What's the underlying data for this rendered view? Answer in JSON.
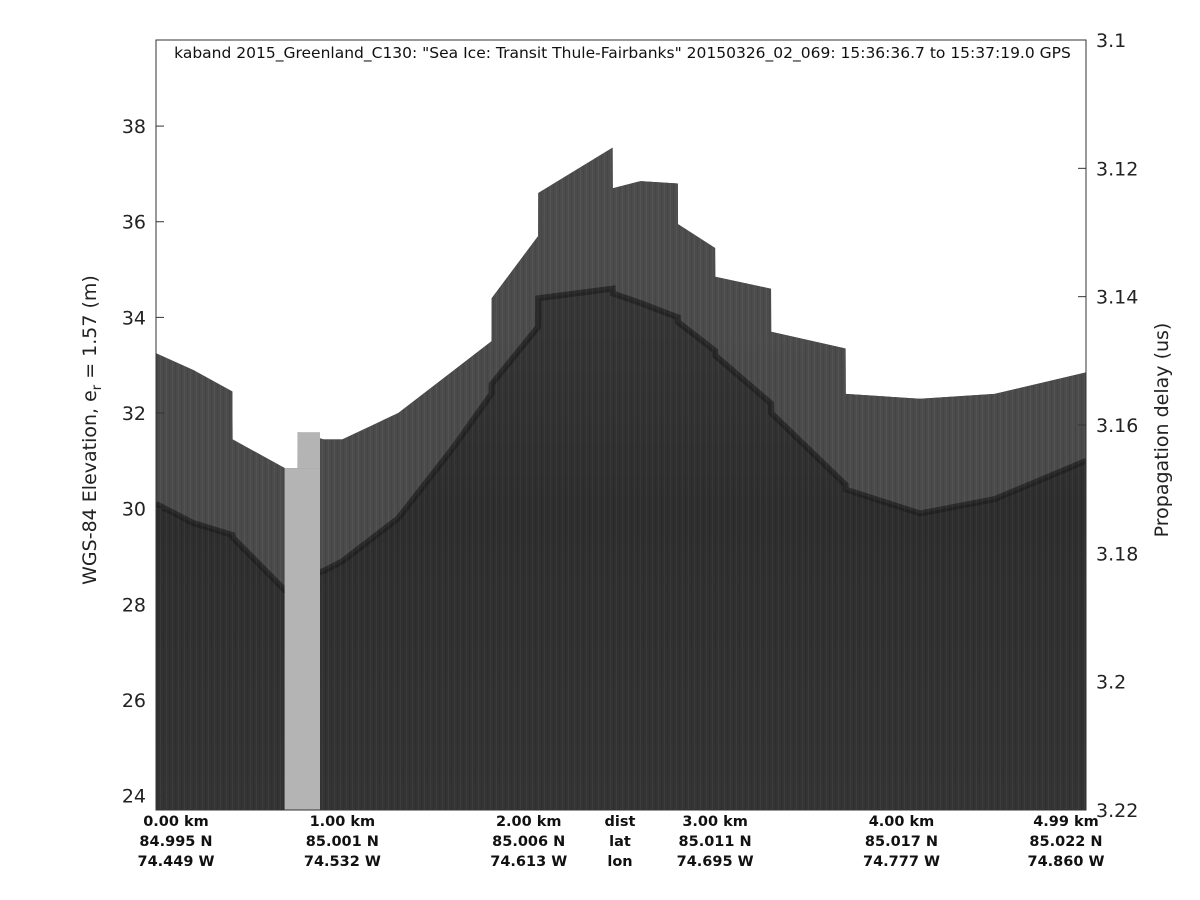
{
  "chart_data": {
    "type": "heatmap",
    "title": "kaband 2015_Greenland_C130: \"Sea Ice: Transit Thule-Fairbanks\"  20150326_02_069: 15:36:36.7 to 15:37:19.0 GPS",
    "ylabel_left_main": "WGS-84 Elevation, e",
    "ylabel_left_sub": "r",
    "ylabel_left_tail": " = 1.57 (m)",
    "ylabel_right": "Propagation delay (us)",
    "colormap": "gray",
    "grid": false,
    "x_range_km": [
      0,
      4.99
    ],
    "ylim_left": [
      23.7,
      39.8
    ],
    "yticks_left": [
      24,
      26,
      28,
      30,
      32,
      34,
      36,
      38
    ],
    "ylim_right": [
      3.1,
      3.22
    ],
    "yticks_right": [
      "3.1",
      "3.12",
      "3.14",
      "3.16",
      "3.18",
      "3.2",
      "3.22"
    ],
    "bottom_labels": {
      "row_titles": [
        "dist",
        "lat",
        "lon"
      ],
      "columns": [
        {
          "dist": "0.00 km",
          "lat": "84.995 N",
          "lon": "74.449 W"
        },
        {
          "dist": "1.00 km",
          "lat": "85.001 N",
          "lon": "74.532 W"
        },
        {
          "dist": "2.00 km",
          "lat": "85.006 N",
          "lon": "74.613 W"
        },
        {
          "dist": "3.00 km",
          "lat": "85.011 N",
          "lon": "74.695 W"
        },
        {
          "dist": "4.00 km",
          "lat": "85.017 N",
          "lon": "74.777 W"
        },
        {
          "dist": "4.99 km",
          "lat": "85.022 N",
          "lon": "74.860 W"
        }
      ]
    },
    "column_positions_km": [
      0,
      1.0,
      2.0,
      3.0,
      4.0,
      4.99
    ],
    "surface_profile": [
      {
        "km": 0.0,
        "top": 33.25,
        "surf": 30.1
      },
      {
        "km": 0.2,
        "top": 32.9,
        "surf": 29.7
      },
      {
        "km": 0.41,
        "top": 32.45,
        "surf": 29.45
      },
      {
        "km": 0.411,
        "top": 31.45,
        "surf": 29.4
      },
      {
        "km": 0.69,
        "top": 30.85,
        "surf": 28.3
      },
      {
        "km": 0.691,
        "top": 30.85,
        "surf": 28.3
      },
      {
        "km": 0.76,
        "top": 30.85,
        "surf": 28.3
      },
      {
        "km": 0.761,
        "top": 31.6,
        "surf": 28.5
      },
      {
        "km": 0.9,
        "top": 31.45,
        "surf": 28.7
      },
      {
        "km": 1.0,
        "top": 31.45,
        "surf": 28.9
      },
      {
        "km": 1.3,
        "top": 32.0,
        "surf": 29.8
      },
      {
        "km": 1.6,
        "top": 32.9,
        "surf": 31.3
      },
      {
        "km": 1.8,
        "top": 33.5,
        "surf": 32.4
      },
      {
        "km": 1.801,
        "top": 34.4,
        "surf": 32.6
      },
      {
        "km": 2.05,
        "top": 35.7,
        "surf": 33.8
      },
      {
        "km": 2.051,
        "top": 36.6,
        "surf": 34.4
      },
      {
        "km": 2.45,
        "top": 37.55,
        "surf": 34.6
      },
      {
        "km": 2.451,
        "top": 36.7,
        "surf": 34.5
      },
      {
        "km": 2.6,
        "top": 36.85,
        "surf": 34.3
      },
      {
        "km": 2.8,
        "top": 36.8,
        "surf": 34.0
      },
      {
        "km": 2.801,
        "top": 35.95,
        "surf": 33.9
      },
      {
        "km": 3.0,
        "top": 35.45,
        "surf": 33.3
      },
      {
        "km": 3.001,
        "top": 34.85,
        "surf": 33.2
      },
      {
        "km": 3.3,
        "top": 34.6,
        "surf": 32.2
      },
      {
        "km": 3.301,
        "top": 33.7,
        "surf": 32.0
      },
      {
        "km": 3.7,
        "top": 33.35,
        "surf": 30.5
      },
      {
        "km": 3.701,
        "top": 32.4,
        "surf": 30.4
      },
      {
        "km": 4.1,
        "top": 32.3,
        "surf": 29.9
      },
      {
        "km": 4.5,
        "top": 32.4,
        "surf": 30.2
      },
      {
        "km": 4.99,
        "top": 32.85,
        "surf": 31.0
      }
    ],
    "data_gap_km": [
      0.69,
      0.88
    ]
  }
}
